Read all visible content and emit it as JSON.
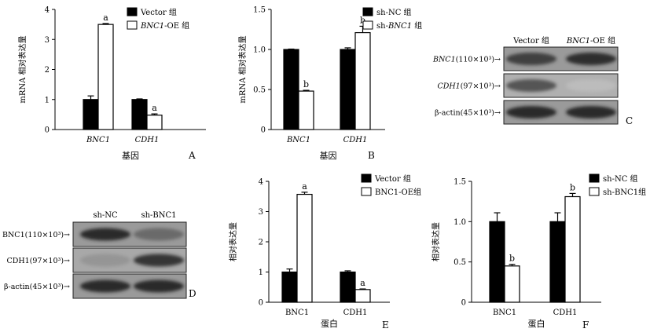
{
  "chart_data": [
    {
      "type": "bar",
      "panel_letter": "A",
      "categories": [
        "BNC1",
        "CDH1"
      ],
      "categories_italic": true,
      "xlabel": "基因",
      "ylabel": "mRNA 相对表达量",
      "ylim": [
        0,
        4
      ],
      "yticks": [
        "0",
        "1",
        "2",
        "3",
        "4"
      ],
      "series": [
        {
          "name": "Vector 组",
          "name_parts": [
            {
              "text": "Vector 组",
              "italic": false
            }
          ],
          "fill": "#000000",
          "values": [
            1.0,
            1.0
          ],
          "errors": [
            0.12,
            0.02
          ]
        },
        {
          "name": "BNC1-OE 组",
          "name_parts": [
            {
              "text": "BNC1",
              "italic": true
            },
            {
              "text": "-OE 组",
              "italic": false
            }
          ],
          "fill": "#ffffff",
          "values": [
            3.5,
            0.48
          ],
          "errors": [
            0.03,
            0.04
          ]
        }
      ],
      "annotations": [
        {
          "category": 0,
          "series": 1,
          "text": "a"
        },
        {
          "category": 1,
          "series": 1,
          "text": "a"
        }
      ]
    },
    {
      "type": "bar",
      "panel_letter": "B",
      "categories": [
        "BNC1",
        "CDH1"
      ],
      "categories_italic": true,
      "xlabel": "基因",
      "ylabel": "mRNA 相对表达量",
      "ylim": [
        0,
        1.5
      ],
      "yticks": [
        "0",
        "0.5",
        "1.0",
        "1.5"
      ],
      "series": [
        {
          "name": "sh-NC 组",
          "name_parts": [
            {
              "text": "sh-NC 组",
              "italic": false
            }
          ],
          "fill": "#000000",
          "values": [
            1.0,
            1.0
          ],
          "errors": [
            0.005,
            0.02
          ]
        },
        {
          "name": "sh-BNC1 组",
          "name_parts": [
            {
              "text": "sh-",
              "italic": false
            },
            {
              "text": "BNC1",
              "italic": true
            },
            {
              "text": " 组",
              "italic": false
            }
          ],
          "fill": "#ffffff",
          "values": [
            0.48,
            1.21
          ],
          "errors": [
            0.01,
            0.08
          ]
        }
      ],
      "annotations": [
        {
          "category": 0,
          "series": 1,
          "text": "b"
        },
        {
          "category": 1,
          "series": 1,
          "text": "b"
        }
      ]
    },
    {
      "type": "bar",
      "panel_letter": "E",
      "categories": [
        "BNC1",
        "CDH1"
      ],
      "categories_italic": false,
      "xlabel": "蛋白",
      "ylabel": "相对表达量",
      "ylim": [
        0,
        4
      ],
      "yticks": [
        "0",
        "1",
        "2",
        "3",
        "4"
      ],
      "series": [
        {
          "name": "Vector 组",
          "name_parts": [
            {
              "text": "Vector 组",
              "italic": false
            }
          ],
          "fill": "#000000",
          "values": [
            1.0,
            1.0
          ],
          "errors": [
            0.1,
            0.04
          ]
        },
        {
          "name": "BNC1-OE组",
          "name_parts": [
            {
              "text": "BNC1-OE组",
              "italic": false
            }
          ],
          "fill": "#ffffff",
          "values": [
            3.57,
            0.42
          ],
          "errors": [
            0.07,
            0.02
          ]
        }
      ],
      "annotations": [
        {
          "category": 0,
          "series": 1,
          "text": "a"
        },
        {
          "category": 1,
          "series": 1,
          "text": "a"
        }
      ]
    },
    {
      "type": "bar",
      "panel_letter": "F",
      "categories": [
        "BNC1",
        "CDH1"
      ],
      "categories_italic": false,
      "xlabel": "蛋白",
      "ylabel": "相对表达量",
      "ylim": [
        0,
        1.5
      ],
      "yticks": [
        "0",
        "0.5",
        "1.0",
        "1.5"
      ],
      "series": [
        {
          "name": "sh-NC 组",
          "name_parts": [
            {
              "text": "sh-NC 组",
              "italic": false
            }
          ],
          "fill": "#000000",
          "values": [
            1.0,
            1.0
          ],
          "errors": [
            0.11,
            0.11
          ]
        },
        {
          "name": "sh-BNC1组",
          "name_parts": [
            {
              "text": "sh-BNC1组",
              "italic": false
            }
          ],
          "fill": "#ffffff",
          "values": [
            0.45,
            1.31
          ],
          "errors": [
            0.02,
            0.04
          ]
        }
      ],
      "annotations": [
        {
          "category": 0,
          "series": 1,
          "text": "b"
        },
        {
          "category": 1,
          "series": 1,
          "text": "b"
        }
      ]
    }
  ],
  "blots": [
    {
      "panel_letter": "C",
      "lane_labels": [
        {
          "parts": [
            {
              "text": "Vector 组",
              "italic": false
            }
          ]
        },
        {
          "parts": [
            {
              "text": "BNC1",
              "italic": true
            },
            {
              "text": "-OE 组",
              "italic": false
            }
          ]
        }
      ],
      "rows": [
        {
          "parts": [
            {
              "text": "BNC1",
              "italic": true
            },
            {
              "text": "(110×10³)",
              "italic": false
            }
          ],
          "arrow": "→",
          "bands": [
            0.8,
            0.88
          ],
          "background": "#9a9a9a"
        },
        {
          "parts": [
            {
              "text": "CDH1",
              "italic": true
            },
            {
              "text": "(97×10³)",
              "italic": false
            }
          ],
          "arrow": "→",
          "bands": [
            0.7,
            0.22
          ],
          "background": "#b0b0b0"
        },
        {
          "parts": [
            {
              "text": "β-actin(45×10³)",
              "italic": false
            }
          ],
          "arrow": "→",
          "bands": [
            0.9,
            0.9
          ],
          "background": "#9a9a9a"
        }
      ]
    },
    {
      "panel_letter": "D",
      "lane_labels": [
        {
          "parts": [
            {
              "text": "sh-NC",
              "italic": false
            }
          ]
        },
        {
          "parts": [
            {
              "text": "sh-BNC1",
              "italic": false
            }
          ]
        }
      ],
      "rows": [
        {
          "parts": [
            {
              "text": "BNC1(110×10³)",
              "italic": false
            }
          ],
          "arrow": "→",
          "bands": [
            0.9,
            0.6
          ],
          "background": "#9a9a9a"
        },
        {
          "parts": [
            {
              "text": "CDH1(97×10³)",
              "italic": false
            }
          ],
          "arrow": "→",
          "bands": [
            0.4,
            0.85
          ],
          "background": "#a8a8a8"
        },
        {
          "parts": [
            {
              "text": "β-actin(45×10³)",
              "italic": false
            }
          ],
          "arrow": "→",
          "bands": [
            0.9,
            0.9
          ],
          "background": "#9a9a9a"
        }
      ]
    }
  ]
}
